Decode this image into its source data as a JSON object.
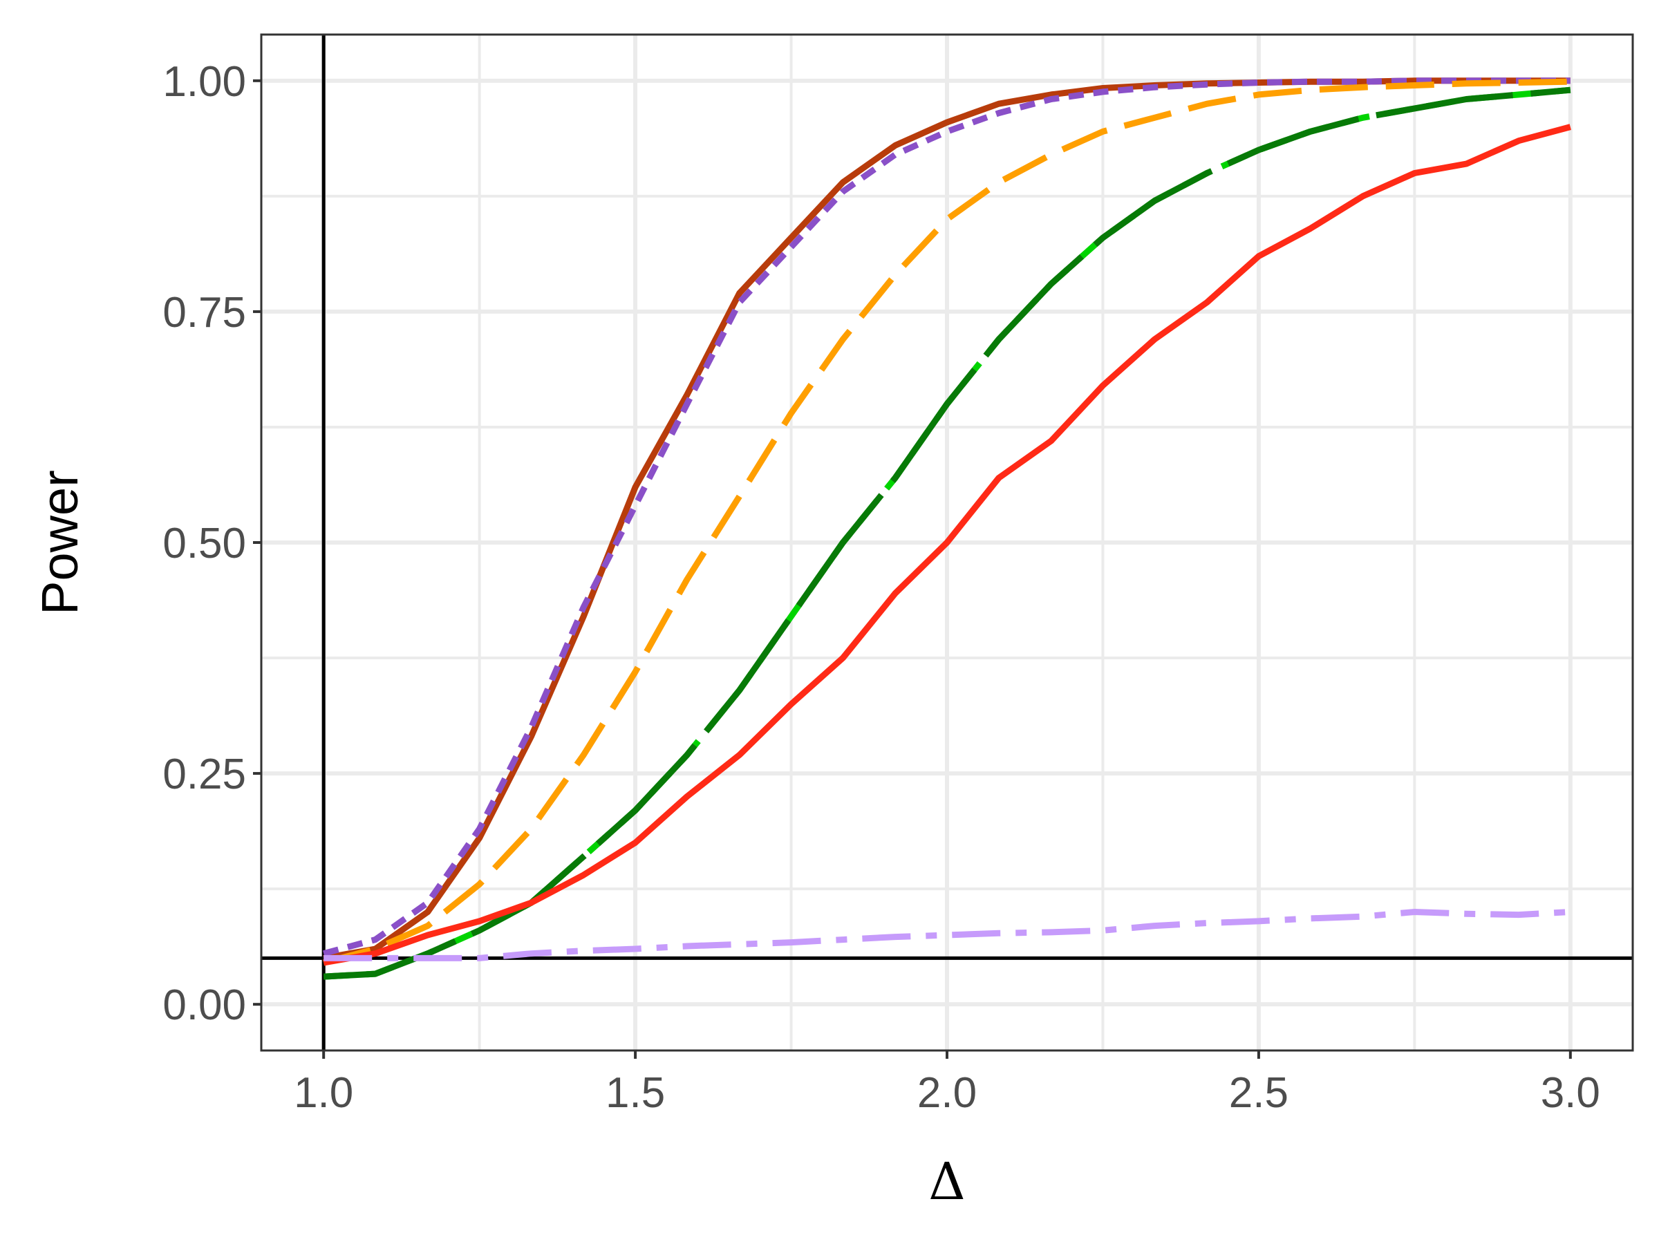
{
  "chart_data": {
    "type": "line",
    "title": "",
    "xlabel": "Δ",
    "ylabel": "Power",
    "xlim": [
      0.9,
      3.1
    ],
    "ylim": [
      -0.05,
      1.05
    ],
    "xticks": [
      1.0,
      1.5,
      2.0,
      2.5,
      3.0
    ],
    "xtick_labels": [
      "1.0",
      "1.5",
      "2.0",
      "2.5",
      "3.0"
    ],
    "yticks": [
      0.0,
      0.25,
      0.5,
      0.75,
      1.0
    ],
    "ytick_labels": [
      "0.00",
      "0.25",
      "0.50",
      "0.75",
      "1.00"
    ],
    "grid": true,
    "reference_lines": {
      "vertical_x": 1.0,
      "horizontal_y": 0.05
    },
    "x": [
      1.0,
      1.083,
      1.167,
      1.25,
      1.333,
      1.417,
      1.5,
      1.583,
      1.667,
      1.75,
      1.833,
      1.917,
      2.0,
      2.083,
      2.167,
      2.25,
      2.333,
      2.417,
      2.5,
      2.583,
      2.667,
      2.75,
      2.833,
      2.917,
      3.0
    ],
    "series": [
      {
        "color": "#b83c0b",
        "dash": "solid",
        "values": [
          0.05,
          0.06,
          0.1,
          0.18,
          0.29,
          0.42,
          0.56,
          0.66,
          0.77,
          0.83,
          0.89,
          0.93,
          0.955,
          0.975,
          0.985,
          0.992,
          0.995,
          0.997,
          0.998,
          0.999,
          0.999,
          1.0,
          1.0,
          1.0,
          1.0
        ]
      },
      {
        "color": "#8a50c8",
        "dash": "dash-short",
        "values": [
          0.055,
          0.07,
          0.11,
          0.19,
          0.3,
          0.43,
          0.54,
          0.65,
          0.76,
          0.82,
          0.88,
          0.92,
          0.945,
          0.965,
          0.98,
          0.988,
          0.993,
          0.996,
          0.998,
          0.999,
          0.999,
          1.0,
          1.0,
          1.0,
          1.0
        ]
      },
      {
        "color": "#ff9f00",
        "dash": "dash-long",
        "values": [
          0.045,
          0.06,
          0.085,
          0.13,
          0.19,
          0.27,
          0.36,
          0.46,
          0.55,
          0.64,
          0.72,
          0.79,
          0.85,
          0.89,
          0.92,
          0.945,
          0.96,
          0.975,
          0.985,
          0.99,
          0.993,
          0.995,
          0.997,
          0.998,
          0.999
        ]
      },
      {
        "color": "#00d400",
        "dash": "dash-mid",
        "values": [
          0.03,
          0.033,
          0.055,
          0.08,
          0.11,
          0.16,
          0.21,
          0.27,
          0.34,
          0.42,
          0.5,
          0.57,
          0.65,
          0.72,
          0.78,
          0.83,
          0.87,
          0.9,
          0.925,
          0.945,
          0.96,
          0.97,
          0.98,
          0.985,
          0.99
        ]
      },
      {
        "color": "#077a07",
        "dash": "dash-long-overlay",
        "values": [
          0.03,
          0.033,
          0.055,
          0.08,
          0.11,
          0.16,
          0.21,
          0.27,
          0.34,
          0.42,
          0.5,
          0.57,
          0.65,
          0.72,
          0.78,
          0.83,
          0.87,
          0.9,
          0.925,
          0.945,
          0.96,
          0.97,
          0.98,
          0.985,
          0.99
        ]
      },
      {
        "color": "#ff2a16",
        "dash": "solid",
        "values": [
          0.045,
          0.055,
          0.075,
          0.09,
          0.11,
          0.14,
          0.175,
          0.225,
          0.27,
          0.325,
          0.375,
          0.445,
          0.5,
          0.57,
          0.61,
          0.67,
          0.72,
          0.76,
          0.81,
          0.84,
          0.875,
          0.9,
          0.91,
          0.935,
          0.95
        ]
      },
      {
        "color": "#c69bfb",
        "dash": "dash-dot",
        "values": [
          0.05,
          0.05,
          0.05,
          0.05,
          0.055,
          0.058,
          0.06,
          0.063,
          0.065,
          0.067,
          0.07,
          0.073,
          0.075,
          0.077,
          0.078,
          0.08,
          0.085,
          0.088,
          0.09,
          0.093,
          0.095,
          0.1,
          0.098,
          0.097,
          0.1
        ]
      }
    ]
  }
}
